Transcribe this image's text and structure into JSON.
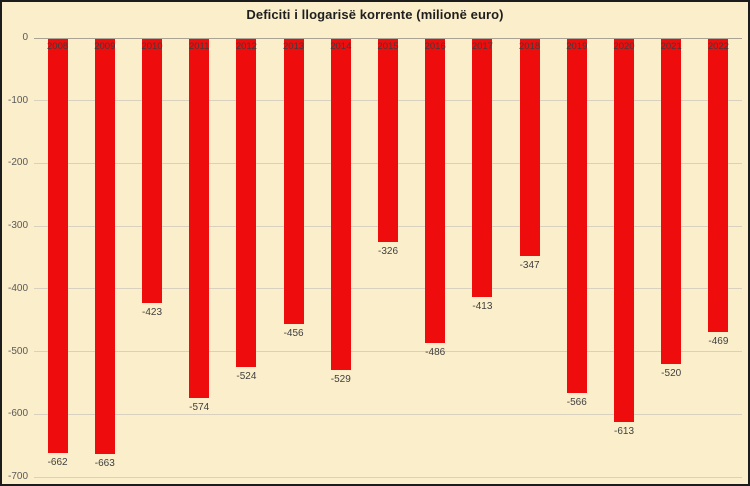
{
  "chart_data": {
    "type": "bar",
    "title": "Deficiti i llogarisë korrente (milionë euro)",
    "categories": [
      "2008",
      "2009",
      "2010",
      "2011",
      "2012",
      "2013",
      "2014",
      "2015",
      "2016",
      "2017",
      "2018",
      "2019",
      "2020",
      "2021",
      "2022"
    ],
    "values": [
      -662,
      -663,
      -423,
      -574,
      -524,
      -456,
      -529,
      -326,
      -486,
      -413,
      -347,
      -566,
      -613,
      -520,
      -469
    ],
    "xlabel": "",
    "ylabel": "",
    "ylim": [
      -700,
      0
    ],
    "yticks": [
      0,
      -100,
      -200,
      -300,
      -400,
      -500,
      -600,
      -700
    ],
    "grid": true,
    "legend_position": "none",
    "value_labels": true,
    "colors": {
      "bar": "#ee0c0c",
      "background": "#fbeeca",
      "gridline": "#d8d1bf",
      "zero_line": "#aaa393",
      "tick_text": "#595959",
      "label_text": "#3f3f3f",
      "title_text": "#1f1f1f",
      "border": "#1c1c1c"
    }
  }
}
